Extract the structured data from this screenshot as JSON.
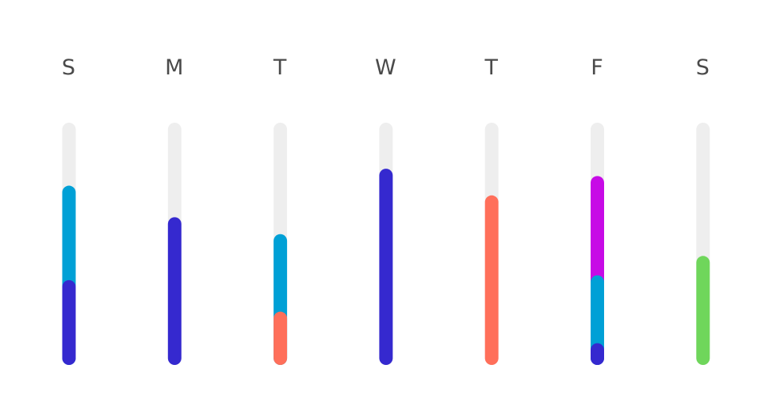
{
  "chart_data": {
    "type": "bar",
    "stacked": true,
    "categories": [
      "S",
      "M",
      "T",
      "W",
      "T",
      "F",
      "S"
    ],
    "ylim": [
      0,
      1
    ],
    "track_color": "#eeeeee",
    "colors": {
      "indigo": "#3529cf",
      "sky": "#00a0d6",
      "coral": "#ff6f5a",
      "magenta": "#c70ae6",
      "green": "#6fd65b"
    },
    "bars": [
      {
        "day": "S",
        "segments": [
          {
            "color": "indigo",
            "value": 0.35
          },
          {
            "color": "sky",
            "value": 0.39
          }
        ]
      },
      {
        "day": "M",
        "segments": [
          {
            "color": "indigo",
            "value": 0.61
          }
        ]
      },
      {
        "day": "T",
        "segments": [
          {
            "color": "coral",
            "value": 0.22
          },
          {
            "color": "sky",
            "value": 0.32
          }
        ]
      },
      {
        "day": "W",
        "segments": [
          {
            "color": "indigo",
            "value": 0.81
          }
        ]
      },
      {
        "day": "T",
        "segments": [
          {
            "color": "coral",
            "value": 0.7
          }
        ]
      },
      {
        "day": "F",
        "segments": [
          {
            "color": "indigo",
            "value": 0.09
          },
          {
            "color": "sky",
            "value": 0.28
          },
          {
            "color": "magenta",
            "value": 0.41
          }
        ]
      },
      {
        "day": "S",
        "segments": [
          {
            "color": "green",
            "value": 0.45
          }
        ]
      }
    ]
  }
}
